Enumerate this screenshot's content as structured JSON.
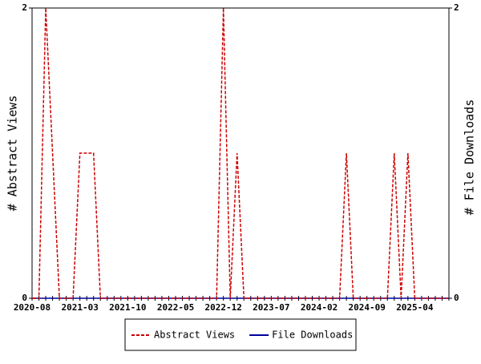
{
  "chart_data": {
    "type": "line",
    "categories": [
      "2020-08",
      null,
      null,
      null,
      null,
      null,
      null,
      "2021-03",
      null,
      null,
      null,
      null,
      null,
      null,
      "2021-10",
      null,
      null,
      null,
      null,
      null,
      null,
      "2022-05",
      null,
      null,
      null,
      null,
      null,
      null,
      "2022-12",
      null,
      null,
      null,
      null,
      null,
      null,
      "2023-07",
      null,
      null,
      null,
      null,
      null,
      null,
      "2024-02",
      null,
      null,
      null,
      null,
      null,
      null,
      "2024-09",
      null,
      null,
      null,
      null,
      null,
      null,
      "2025-04",
      null,
      null,
      null,
      null,
      null
    ],
    "series": [
      {
        "name": "Abstract Views",
        "color": "#cc0000",
        "dashed": true,
        "values": [
          0,
          0,
          2,
          1,
          0,
          0,
          0,
          1,
          1,
          1,
          0,
          0,
          0,
          0,
          0,
          0,
          0,
          0,
          0,
          0,
          0,
          0,
          0,
          0,
          0,
          0,
          0,
          0,
          2,
          0,
          1,
          0,
          0,
          0,
          0,
          0,
          0,
          0,
          0,
          0,
          0,
          0,
          0,
          0,
          0,
          0,
          1,
          0,
          0,
          0,
          0,
          0,
          0,
          1,
          0,
          1,
          0,
          0,
          0,
          0,
          0,
          0
        ]
      },
      {
        "name": "File Downloads",
        "color": "#000099",
        "dashed": false,
        "axis": "y2",
        "values": [
          0,
          0,
          0,
          0,
          0,
          0,
          0,
          0,
          0,
          0,
          0,
          0,
          0,
          0,
          0,
          0,
          0,
          0,
          0,
          0,
          0,
          0,
          0,
          0,
          0,
          0,
          0,
          0,
          0,
          0,
          0,
          0,
          0,
          0,
          0,
          0,
          0,
          0,
          0,
          0,
          0,
          0,
          0,
          0,
          0,
          0,
          0,
          0,
          0,
          0,
          0,
          0,
          0,
          0,
          0,
          0,
          0,
          0,
          0,
          0,
          0,
          0
        ]
      }
    ],
    "y_label": "# Abstract Views",
    "y2_label": "# File Downloads",
    "ylim": [
      0,
      2
    ],
    "yticks": [
      0,
      2
    ],
    "y2lim": [
      0,
      2
    ],
    "y2ticks": [
      0,
      2
    ],
    "grid": false,
    "legend": "bottom"
  }
}
